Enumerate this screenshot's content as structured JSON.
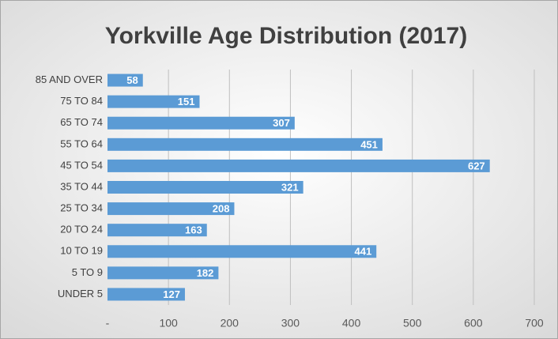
{
  "chart_data": {
    "type": "bar",
    "orientation": "horizontal",
    "title": "Yorkville Age Distribution (2017)",
    "categories": [
      "85 AND OVER",
      "75 TO 84",
      "65 TO 74",
      "55 TO 64",
      "45 TO 54",
      "35 TO 44",
      "25 TO 34",
      "20 TO 24",
      "10 TO 19",
      "5 TO 9",
      "UNDER 5"
    ],
    "values": [
      58,
      151,
      307,
      451,
      627,
      321,
      208,
      163,
      441,
      182,
      127
    ],
    "color": "#5b9bd5",
    "xlim": [
      0,
      700
    ],
    "xticks": [
      {
        "value": 0,
        "label": "-"
      },
      100,
      200,
      300,
      400,
      500,
      600,
      700
    ],
    "grid": true
  }
}
